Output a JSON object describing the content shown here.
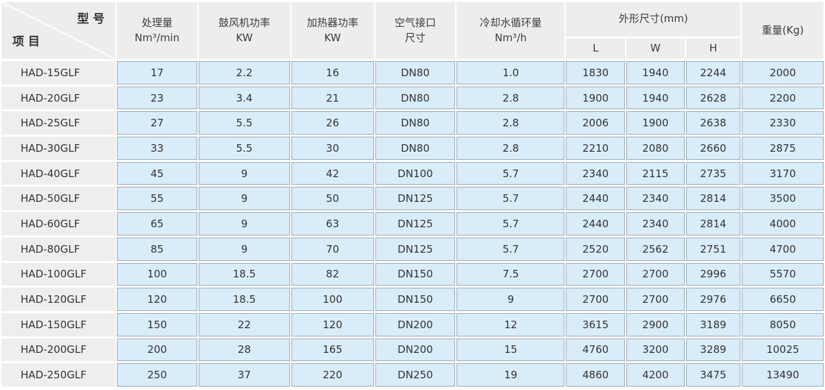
{
  "colors": {
    "cell_fill": "#d9ecfa",
    "header_fill": "#eeedeb",
    "model_column_fill": "#efeeec",
    "cell_border": "#9aa9b4",
    "text": "#333333"
  },
  "table": {
    "corner": {
      "top_right": "型 号",
      "bottom_left": "项 目"
    },
    "columns": [
      {
        "line1": "处理量",
        "line2": "Nm³/min"
      },
      {
        "line1": "鼓风机功率",
        "line2": "KW"
      },
      {
        "line1": "加热器功率",
        "line2": "KW"
      },
      {
        "line1": "空气接口",
        "line2": "尺寸"
      },
      {
        "line1": "冷却水循环量",
        "line2": "Nm³/h"
      }
    ],
    "dims_group": {
      "label": "外形尺寸(mm)",
      "subs": [
        "L",
        "W",
        "H"
      ]
    },
    "weight_label": "重量(Kg)",
    "rows": [
      [
        "HAD-15GLF",
        "17",
        "2.2",
        "16",
        "DN80",
        "1.0",
        "1830",
        "1940",
        "2244",
        "2000"
      ],
      [
        "HAD-20GLF",
        "23",
        "3.4",
        "21",
        "DN80",
        "2.8",
        "1900",
        "1940",
        "2628",
        "2200"
      ],
      [
        "HAD-25GLF",
        "27",
        "5.5",
        "26",
        "DN80",
        "2.8",
        "2006",
        "1900",
        "2638",
        "2330"
      ],
      [
        "HAD-30GLF",
        "33",
        "5.5",
        "30",
        "DN80",
        "2.8",
        "2210",
        "2080",
        "2660",
        "2875"
      ],
      [
        "HAD-40GLF",
        "45",
        "9",
        "42",
        "DN100",
        "5.7",
        "2340",
        "2115",
        "2735",
        "3170"
      ],
      [
        "HAD-50GLF",
        "55",
        "9",
        "50",
        "DN125",
        "5.7",
        "2440",
        "2340",
        "2814",
        "3500"
      ],
      [
        "HAD-60GLF",
        "65",
        "9",
        "63",
        "DN125",
        "5.7",
        "2440",
        "2340",
        "2814",
        "4000"
      ],
      [
        "HAD-80GLF",
        "85",
        "9",
        "70",
        "DN125",
        "5.7",
        "2520",
        "2562",
        "2751",
        "4700"
      ],
      [
        "HAD-100GLF",
        "100",
        "18.5",
        "82",
        "DN150",
        "7.5",
        "2700",
        "2700",
        "2996",
        "5570"
      ],
      [
        "HAD-120GLF",
        "120",
        "18.5",
        "100",
        "DN150",
        "9",
        "2700",
        "2700",
        "2976",
        "6650"
      ],
      [
        "HAD-150GLF",
        "150",
        "22",
        "120",
        "DN200",
        "12",
        "3615",
        "2900",
        "3189",
        "8050"
      ],
      [
        "HAD-200GLF",
        "200",
        "28",
        "165",
        "DN200",
        "15",
        "4760",
        "3200",
        "3289",
        "10025"
      ],
      [
        "HAD-250GLF",
        "250",
        "37",
        "220",
        "DN250",
        "19",
        "4860",
        "4200",
        "3475",
        "13490"
      ]
    ]
  }
}
